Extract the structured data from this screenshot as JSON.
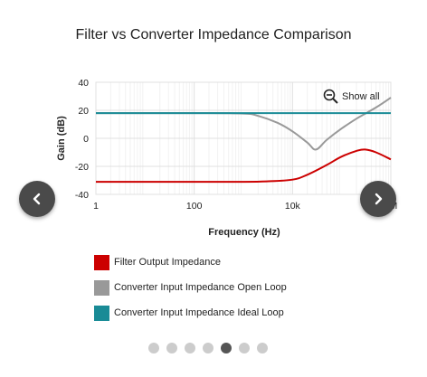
{
  "chart_data": {
    "type": "line",
    "title": "Filter vs Converter Impedance Comparison",
    "xlabel": "Frequency (Hz)",
    "ylabel": "Gain (dB)",
    "x_scale": "log",
    "xlim": [
      1,
      1000000
    ],
    "ylim": [
      -40,
      40
    ],
    "x_ticks": [
      {
        "value": 1,
        "label": "1"
      },
      {
        "value": 100,
        "label": "100"
      },
      {
        "value": 10000,
        "label": "10k"
      },
      {
        "value": 1000000,
        "label": "1M"
      }
    ],
    "y_ticks": [
      40,
      20,
      0,
      -20,
      -40
    ],
    "grid": true,
    "series": [
      {
        "name": "Filter Output Impedance",
        "color": "#cc0000",
        "x": [
          1,
          10,
          100,
          1000,
          3000,
          10000,
          20000,
          50000,
          100000,
          200000,
          300000,
          500000,
          1000000
        ],
        "y": [
          -31,
          -31,
          -31,
          -31,
          -30.7,
          -29.5,
          -26,
          -19,
          -13,
          -9,
          -8,
          -10,
          -15
        ]
      },
      {
        "name": "Converter Input Impedance Open Loop",
        "color": "#999999",
        "x": [
          1,
          10,
          100,
          1000,
          2000,
          5000,
          10000,
          20000,
          30000,
          50000,
          100000,
          200000,
          500000,
          1000000
        ],
        "y": [
          18,
          18,
          18,
          17.7,
          16,
          11,
          5,
          -3,
          -8,
          -1,
          7,
          14,
          22,
          29
        ]
      },
      {
        "name": "Converter Input Impedance Ideal Loop",
        "color": "#198b96",
        "x": [
          1,
          1000000
        ],
        "y": [
          18,
          18
        ]
      }
    ]
  },
  "controls": {
    "show_all_label": "Show all",
    "show_all_icon": "zoom-out-icon",
    "prev_icon": "chevron-left-icon",
    "next_icon": "chevron-right-icon"
  },
  "pagination": {
    "total": 7,
    "active_index": 4
  }
}
